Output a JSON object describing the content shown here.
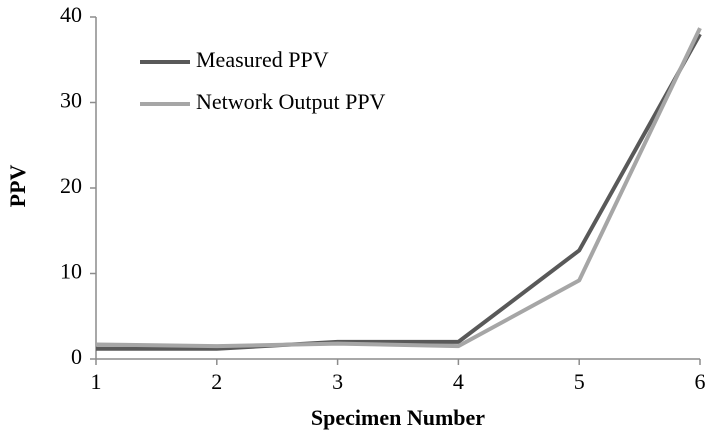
{
  "chart_data": {
    "type": "line",
    "x_label": "Specimen Number",
    "y_label": "PPV",
    "x": [
      1,
      2,
      3,
      4,
      5,
      6
    ],
    "series": [
      {
        "name": "Measured PPV",
        "color": "#595959",
        "values": [
          1.2,
          1.2,
          2.0,
          2.0,
          12.7,
          38.0
        ]
      },
      {
        "name": "Network Output PPV",
        "color": "#a6a6a6",
        "values": [
          1.7,
          1.5,
          1.8,
          1.5,
          9.2,
          38.7
        ]
      }
    ],
    "xlim": [
      1,
      6
    ],
    "xticks": [
      1,
      2,
      3,
      4,
      5,
      6
    ],
    "ylim": [
      0,
      40
    ],
    "yticks": [
      0,
      10,
      20,
      30,
      40
    ],
    "grid": false,
    "legend": "upper-left"
  }
}
